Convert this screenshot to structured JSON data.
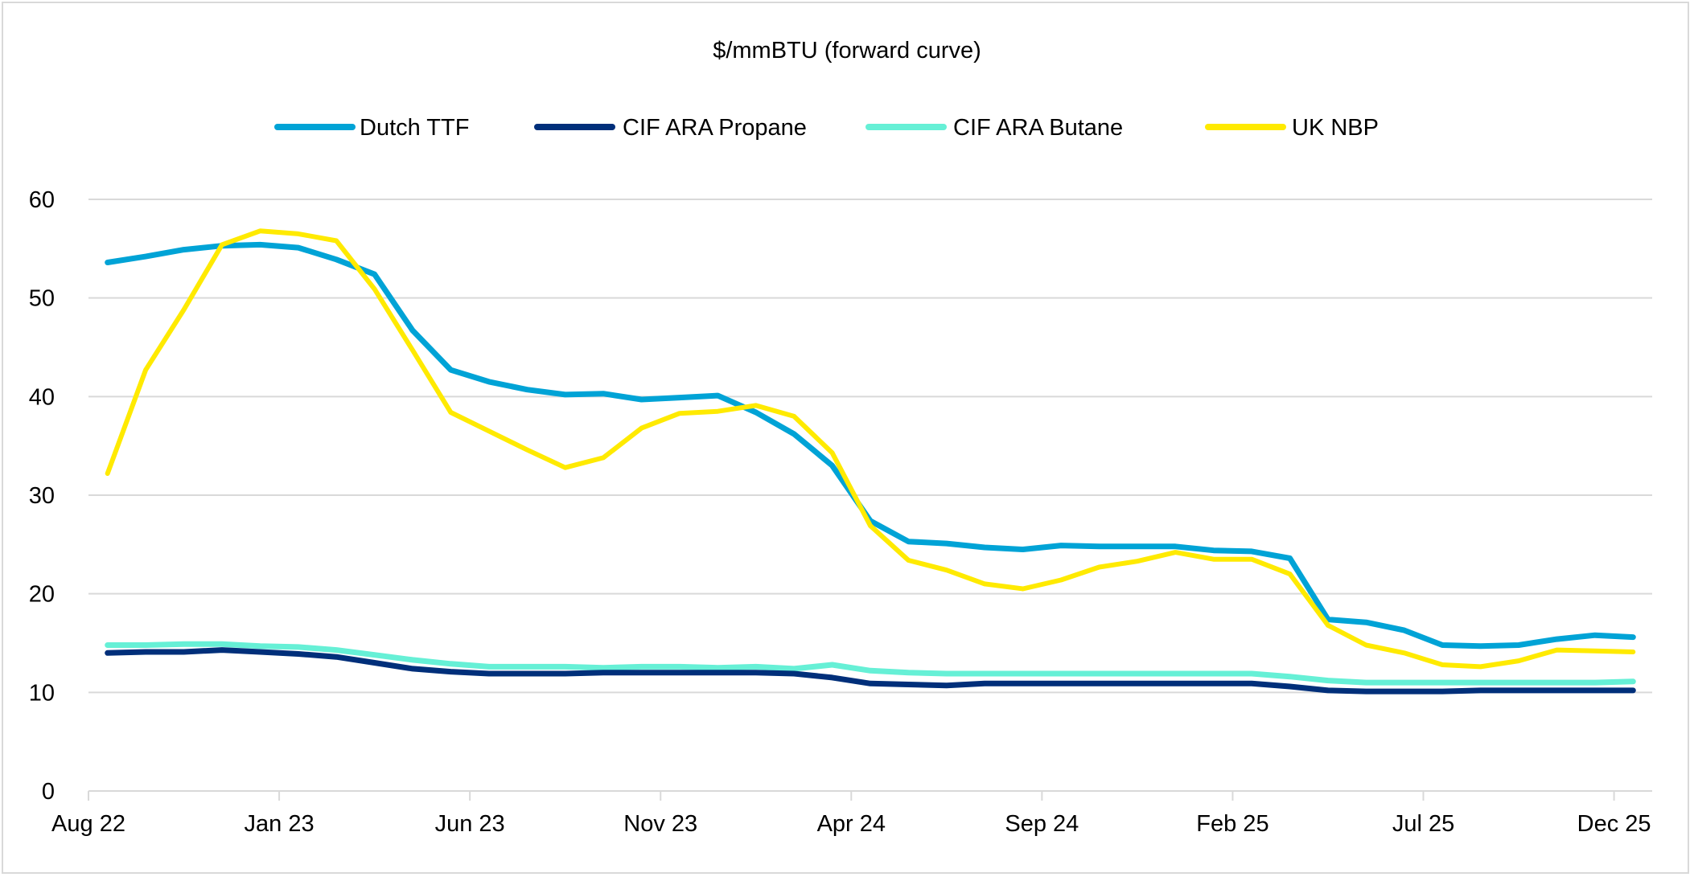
{
  "chart_data": {
    "type": "line",
    "title": "$/mmBTU (forward curve)",
    "xlabel": "",
    "ylabel": "",
    "ylim": [
      0,
      60
    ],
    "yticks": [
      0,
      10,
      20,
      30,
      40,
      50,
      60
    ],
    "grid": true,
    "legend_position": "top",
    "x": [
      "Aug 22",
      "Sep 22",
      "Oct 22",
      "Nov 22",
      "Dec 22",
      "Jan 23",
      "Feb 23",
      "Mar 23",
      "Apr 23",
      "May 23",
      "Jun 23",
      "Jul 23",
      "Aug 23",
      "Sep 23",
      "Oct 23",
      "Nov 23",
      "Dec 23",
      "Jan 24",
      "Feb 24",
      "Mar 24",
      "Apr 24",
      "May 24",
      "Jun 24",
      "Jul 24",
      "Aug 24",
      "Sep 24",
      "Oct 24",
      "Nov 24",
      "Dec 24",
      "Jan 25",
      "Feb 25",
      "Mar 25",
      "Apr 25",
      "May 25",
      "Jun 25",
      "Jul 25",
      "Aug 25",
      "Sep 25",
      "Oct 25",
      "Nov 25",
      "Dec 25"
    ],
    "xtick_labels": [
      "Aug 22",
      "Jan 23",
      "Jun 23",
      "Nov 23",
      "Apr 24",
      "Sep 24",
      "Feb 25",
      "Jul 25",
      "Dec 25"
    ],
    "series": [
      {
        "name": "Dutch TTF",
        "color": "#00a3d6",
        "values": [
          53.6,
          54.2,
          54.9,
          55.3,
          55.4,
          55.1,
          53.9,
          52.4,
          46.7,
          42.7,
          41.5,
          40.7,
          40.2,
          40.3,
          39.7,
          39.9,
          40.1,
          38.4,
          36.2,
          33.0,
          27.4,
          25.3,
          25.1,
          24.7,
          24.5,
          24.9,
          24.8,
          24.8,
          24.8,
          24.4,
          24.3,
          23.6,
          17.4,
          17.1,
          16.3,
          14.8,
          14.7,
          14.8,
          15.4,
          15.8,
          15.6
        ]
      },
      {
        "name": "CIF ARA Propane",
        "color": "#002f7a",
        "values": [
          14.0,
          14.1,
          14.1,
          14.3,
          14.1,
          13.9,
          13.6,
          13.0,
          12.4,
          12.1,
          11.9,
          11.9,
          11.9,
          12.0,
          12.0,
          12.0,
          12.0,
          12.0,
          11.9,
          11.5,
          10.9,
          10.8,
          10.7,
          10.9,
          10.9,
          10.9,
          10.9,
          10.9,
          10.9,
          10.9,
          10.9,
          10.6,
          10.2,
          10.1,
          10.1,
          10.1,
          10.2,
          10.2,
          10.2,
          10.2,
          10.2
        ]
      },
      {
        "name": "CIF ARA Butane",
        "color": "#66f0d6",
        "values": [
          14.8,
          14.8,
          14.9,
          14.9,
          14.7,
          14.6,
          14.3,
          13.8,
          13.3,
          12.9,
          12.6,
          12.6,
          12.6,
          12.5,
          12.6,
          12.6,
          12.5,
          12.6,
          12.4,
          12.8,
          12.2,
          12.0,
          11.9,
          11.9,
          11.9,
          11.9,
          11.9,
          11.9,
          11.9,
          11.9,
          11.9,
          11.6,
          11.2,
          11.0,
          11.0,
          11.0,
          11.0,
          11.0,
          11.0,
          11.0,
          11.1
        ]
      },
      {
        "name": "UK NBP",
        "color": "#ffea00",
        "values": [
          32.2,
          42.7,
          48.8,
          55.4,
          56.8,
          56.5,
          55.8,
          50.9,
          44.7,
          38.4,
          36.5,
          34.6,
          32.8,
          33.8,
          36.8,
          38.3,
          38.5,
          39.1,
          38.0,
          34.3,
          26.9,
          23.4,
          22.4,
          21.0,
          20.5,
          21.4,
          22.7,
          23.3,
          24.2,
          23.5,
          23.5,
          22.0,
          16.8,
          14.8,
          14.0,
          12.8,
          12.6,
          13.2,
          14.3,
          14.2,
          14.1
        ]
      }
    ]
  }
}
